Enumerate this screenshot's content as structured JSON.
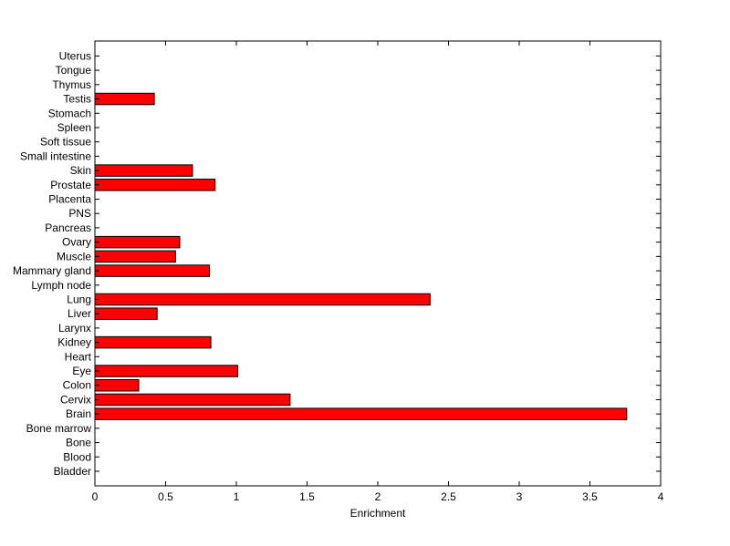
{
  "chart_data": {
    "type": "bar",
    "orientation": "horizontal",
    "title": "",
    "xlabel": "Enrichment",
    "ylabel": "",
    "xlim": [
      0,
      4
    ],
    "x_ticks": [
      "0",
      "0.5",
      "1",
      "1.5",
      "2",
      "2.5",
      "3",
      "3.5",
      "4"
    ],
    "grid": false,
    "legend": "none",
    "bar_color": "#ff0000",
    "categories": [
      "Bladder",
      "Blood",
      "Bone",
      "Bone marrow",
      "Brain",
      "Cervix",
      "Colon",
      "Eye",
      "Heart",
      "Kidney",
      "Larynx",
      "Liver",
      "Lung",
      "Lymph node",
      "Mammary gland",
      "Muscle",
      "Ovary",
      "Pancreas",
      "PNS",
      "Placenta",
      "Prostate",
      "Skin",
      "Small intestine",
      "Soft tissue",
      "Spleen",
      "Stomach",
      "Testis",
      "Thymus",
      "Tongue",
      "Uterus"
    ],
    "values": [
      0,
      0,
      0,
      0,
      3.76,
      1.38,
      0.31,
      1.01,
      0,
      0.82,
      0,
      0.44,
      2.37,
      0,
      0.81,
      0.57,
      0.6,
      0,
      0,
      0,
      0.85,
      0.69,
      0,
      0,
      0,
      0,
      0.42,
      0,
      0,
      0
    ]
  }
}
